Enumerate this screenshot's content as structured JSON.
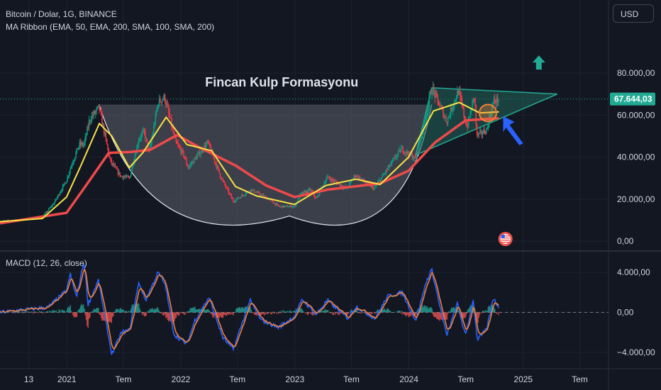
{
  "header": {
    "symbol": "Bitcoin / Dolar, 1G, BINANCE",
    "indicator": "MA Ribbon (EMA, 50, EMA, 200, SMA, 100, SMA, 200)",
    "currency_button": "USD"
  },
  "macd_legend": "MACD (12, 26, close)",
  "annotation_title": "Fincan Kulp Formasyonu",
  "colors": {
    "background": "#131722",
    "grid": "#1e222d",
    "candle_up": "#089981",
    "candle_down": "#f23645",
    "ema_fast": "#f7e245",
    "ema_slow": "#ef4a4a",
    "macd_line": "#2962ff",
    "signal_line": "#f0813a",
    "cup_fill": "#5d606b",
    "triangle_fill": "#1f5e55",
    "triangle_stroke": "#22ab94",
    "price_badge": "#22ab94",
    "blue_arrow": "#2962ff",
    "green_arrow": "#22ab94",
    "highlight_circle": "#f0813a"
  },
  "icons": {
    "up_arrow": "green-up-arrow-icon",
    "pointer_arrow": "blue-pointer-arrow-icon",
    "flag": "us-flag-event-icon"
  },
  "chart_data": [
    {
      "type": "candlestick",
      "title": "Bitcoin / Dolar, 1G, BINANCE",
      "current_price_label": "67.644,03",
      "current_price": 67644.03,
      "ylim": [
        -4000,
        108000
      ],
      "y_ticks": [
        0,
        20000,
        40000,
        60000,
        80000
      ],
      "y_tick_labels": [
        "0,00",
        "20.000,00",
        "40.000,00",
        "60.000,00",
        "80.000,00"
      ],
      "x_tick_labels": [
        "13",
        "2021",
        "Tem",
        "2022",
        "Tem",
        "2023",
        "Tem",
        "2024",
        "Tem",
        "2025",
        "Tem"
      ],
      "x_dates": [
        "2020-09",
        "2021-01",
        "2021-07",
        "2022-01",
        "2022-07",
        "2023-01",
        "2023-07",
        "2024-01",
        "2024-07",
        "2025-01",
        "2025-07"
      ],
      "price_path": [
        [
          "2020-06-01",
          9500
        ],
        [
          "2020-09-01",
          10500
        ],
        [
          "2020-10-15",
          11500
        ],
        [
          "2020-11-20",
          18000
        ],
        [
          "2020-12-31",
          29000
        ],
        [
          "2021-01-15",
          36000
        ],
        [
          "2021-02-10",
          46000
        ],
        [
          "2021-02-25",
          46000
        ],
        [
          "2021-03-15",
          58000
        ],
        [
          "2021-04-14",
          63500
        ],
        [
          "2021-05-20",
          38000
        ],
        [
          "2021-06-22",
          31000
        ],
        [
          "2021-07-20",
          30000
        ],
        [
          "2021-08-20",
          49000
        ],
        [
          "2021-09-05",
          52000
        ],
        [
          "2021-09-22",
          42000
        ],
        [
          "2021-10-20",
          66000
        ],
        [
          "2021-11-10",
          68500
        ],
        [
          "2021-12-15",
          47000
        ],
        [
          "2022-01-10",
          41000
        ],
        [
          "2022-01-24",
          35000
        ],
        [
          "2022-03-28",
          47000
        ],
        [
          "2022-05-10",
          30000
        ],
        [
          "2022-06-18",
          19000
        ],
        [
          "2022-08-14",
          24500
        ],
        [
          "2022-10-15",
          19500
        ],
        [
          "2022-11-10",
          16500
        ],
        [
          "2022-12-31",
          16500
        ],
        [
          "2023-01-20",
          22500
        ],
        [
          "2023-02-20",
          24500
        ],
        [
          "2023-03-10",
          20000
        ],
        [
          "2023-04-14",
          30500
        ],
        [
          "2023-06-15",
          25000
        ],
        [
          "2023-07-13",
          31500
        ],
        [
          "2023-09-11",
          25000
        ],
        [
          "2023-10-25",
          34500
        ],
        [
          "2023-12-08",
          44000
        ],
        [
          "2024-01-23",
          39000
        ],
        [
          "2024-02-28",
          62000
        ],
        [
          "2024-03-14",
          73000
        ],
        [
          "2024-05-01",
          57000
        ],
        [
          "2024-06-07",
          71500
        ],
        [
          "2024-07-05",
          54000
        ],
        [
          "2024-07-29",
          69500
        ],
        [
          "2024-08-05",
          50000
        ],
        [
          "2024-09-06",
          53000
        ],
        [
          "2024-09-27",
          66000
        ],
        [
          "2024-10-15",
          67644
        ]
      ],
      "ema_50_path": [
        [
          "2020-06-01",
          9300
        ],
        [
          "2020-10-15",
          10800
        ],
        [
          "2020-12-31",
          21000
        ],
        [
          "2021-02-15",
          36000
        ],
        [
          "2021-04-15",
          56000
        ],
        [
          "2021-05-25",
          50000
        ],
        [
          "2021-07-20",
          35000
        ],
        [
          "2021-09-01",
          42000
        ],
        [
          "2021-11-15",
          59000
        ],
        [
          "2022-01-20",
          46000
        ],
        [
          "2022-04-10",
          43000
        ],
        [
          "2022-06-25",
          26000
        ],
        [
          "2022-09-01",
          21500
        ],
        [
          "2022-12-31",
          17500
        ],
        [
          "2023-04-10",
          26500
        ],
        [
          "2023-07-15",
          29500
        ],
        [
          "2023-10-01",
          27000
        ],
        [
          "2023-12-31",
          40000
        ],
        [
          "2024-03-20",
          62000
        ],
        [
          "2024-06-10",
          66000
        ],
        [
          "2024-08-15",
          61000
        ],
        [
          "2024-10-15",
          61500
        ]
      ],
      "ema_200_path": [
        [
          "2020-06-01",
          8500
        ],
        [
          "2020-12-31",
          13500
        ],
        [
          "2021-03-01",
          26000
        ],
        [
          "2021-05-15",
          42000
        ],
        [
          "2021-07-25",
          42500
        ],
        [
          "2021-09-25",
          43500
        ],
        [
          "2021-12-20",
          50500
        ],
        [
          "2022-02-25",
          45000
        ],
        [
          "2022-06-25",
          36000
        ],
        [
          "2022-10-01",
          26500
        ],
        [
          "2022-12-31",
          21000
        ],
        [
          "2023-04-15",
          24500
        ],
        [
          "2023-10-01",
          27500
        ],
        [
          "2023-12-31",
          33500
        ],
        [
          "2024-03-25",
          47000
        ],
        [
          "2024-07-01",
          57500
        ],
        [
          "2024-10-15",
          58500
        ]
      ],
      "cup_rim_price": 65000,
      "cup_start": "2021-04-14",
      "cup_end": "2024-03-14",
      "cup_bottom_price": 12000,
      "cup_bottom_date": "2022-12-15",
      "triangle": {
        "upper_start": [
          "2024-03-14",
          73000
        ],
        "upper_end": [
          "2025-04-20",
          70000
        ],
        "lower_start": [
          "2024-01-23",
          41000
        ],
        "apex": [
          "2025-04-20",
          70000
        ]
      }
    },
    {
      "type": "macd",
      "title": "MACD (12, 26, close)",
      "ylim": [
        -5500,
        6000
      ],
      "y_ticks": [
        -4000,
        0,
        4000
      ],
      "y_tick_labels": [
        "−4.000,00",
        "0,00",
        "4.000,00"
      ],
      "macd_path": [
        [
          "2020-06-01",
          0
        ],
        [
          "2020-11-01",
          500
        ],
        [
          "2020-12-31",
          2200
        ],
        [
          "2021-01-12",
          3800
        ],
        [
          "2021-02-01",
          1500
        ],
        [
          "2021-02-25",
          5200
        ],
        [
          "2021-03-10",
          800
        ],
        [
          "2021-04-12",
          3200
        ],
        [
          "2021-05-05",
          -800
        ],
        [
          "2021-05-25",
          -4200
        ],
        [
          "2021-06-25",
          -2000
        ],
        [
          "2021-07-20",
          -1800
        ],
        [
          "2021-08-20",
          3000
        ],
        [
          "2021-09-10",
          1200
        ],
        [
          "2021-10-20",
          4000
        ],
        [
          "2021-11-12",
          2800
        ],
        [
          "2021-12-10",
          -2200
        ],
        [
          "2022-01-20",
          -3200
        ],
        [
          "2022-02-15",
          -800
        ],
        [
          "2022-04-01",
          1500
        ],
        [
          "2022-05-15",
          -2500
        ],
        [
          "2022-06-18",
          -3700
        ],
        [
          "2022-08-10",
          1200
        ],
        [
          "2022-09-15",
          -800
        ],
        [
          "2022-11-10",
          -1500
        ],
        [
          "2022-12-31",
          -400
        ],
        [
          "2023-01-25",
          1300
        ],
        [
          "2023-03-10",
          -200
        ],
        [
          "2023-04-15",
          1200
        ],
        [
          "2023-06-20",
          -600
        ],
        [
          "2023-07-15",
          600
        ],
        [
          "2023-09-15",
          -600
        ],
        [
          "2023-10-25",
          1600
        ],
        [
          "2023-12-10",
          2000
        ],
        [
          "2024-01-23",
          -800
        ],
        [
          "2024-02-25",
          3000
        ],
        [
          "2024-03-14",
          4300
        ],
        [
          "2024-04-20",
          -900
        ],
        [
          "2024-05-01",
          -2300
        ],
        [
          "2024-06-05",
          900
        ],
        [
          "2024-06-30",
          -2400
        ],
        [
          "2024-07-25",
          1300
        ],
        [
          "2024-08-07",
          -2700
        ],
        [
          "2024-09-06",
          -1700
        ],
        [
          "2024-09-28",
          1500
        ],
        [
          "2024-10-15",
          400
        ]
      ]
    }
  ]
}
